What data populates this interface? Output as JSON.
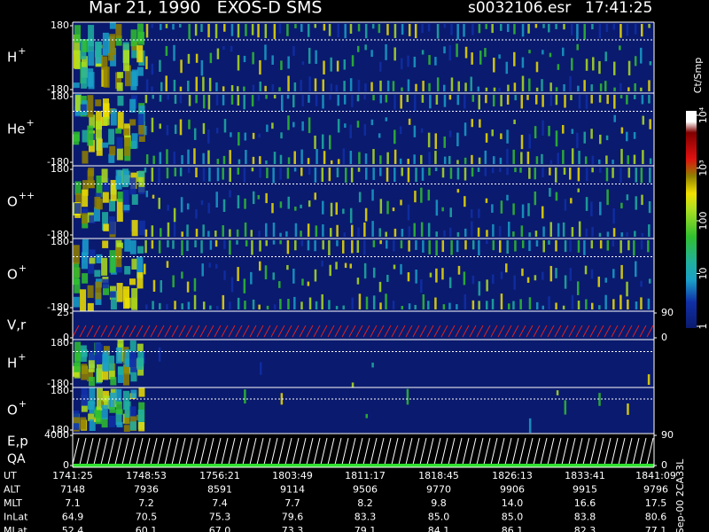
{
  "chart_data": {
    "type": "spectrogram",
    "title": "Mar 21, 1990   EXOS-D SMS",
    "file": "s0032106.esr",
    "time": "17:41:25",
    "panels": [
      {
        "label": "H",
        "sup": "+",
        "ylim": [
          -180,
          180
        ],
        "yticks": [
          -180,
          180
        ]
      },
      {
        "label": "He",
        "sup": "+",
        "ylim": [
          -180,
          180
        ],
        "yticks": [
          -180,
          180
        ]
      },
      {
        "label": "O",
        "sup": "++",
        "ylim": [
          -180,
          180
        ],
        "yticks": [
          -180,
          180
        ]
      },
      {
        "label": "O",
        "sup": "+",
        "ylim": [
          -180,
          180
        ],
        "yticks": [
          -180,
          180
        ]
      },
      {
        "label": "V,r",
        "ylim": [
          0,
          25
        ],
        "yticks": [
          0,
          25
        ],
        "y2lim": [
          0,
          90
        ],
        "y2ticks": [
          0,
          90
        ]
      },
      {
        "label": "H",
        "sup": "+",
        "ylim": [
          -180,
          180
        ],
        "yticks": [
          -180,
          180
        ]
      },
      {
        "label": "O",
        "sup": "+",
        "ylim": [
          -180,
          180
        ],
        "yticks": [
          -180,
          180
        ]
      },
      {
        "label": "E,p",
        "label2": "QA",
        "ylim": [
          0,
          4000
        ],
        "yticks": [
          0,
          4000
        ],
        "y2lim": [
          0,
          90
        ],
        "y2ticks": [
          0,
          90
        ]
      }
    ],
    "colorbar": {
      "label": "Ct/Smp",
      "log": true,
      "lim": [
        1,
        10000
      ],
      "ticks": [
        1,
        10,
        100,
        {
          "value": 1000,
          "label": "10³"
        },
        {
          "value": 10000,
          "label": "10⁴"
        }
      ]
    },
    "table": {
      "rows": [
        [
          "UT",
          "1741:25",
          "1748:53",
          "1756:21",
          "1803:49",
          "1811:17",
          "1818:45",
          "1826:13",
          "1833:41",
          "1841:09"
        ],
        [
          "ALT",
          "7148",
          "7936",
          "8591",
          "9114",
          "9506",
          "9770",
          "9906",
          "9915",
          "9796"
        ],
        [
          "MLT",
          "7.1",
          "7.2",
          "7.4",
          "7.7",
          "8.2",
          "9.8",
          "14.0",
          "16.6",
          "17.5"
        ],
        [
          "InLat",
          "64.9",
          "70.5",
          "75.3",
          "79.6",
          "83.3",
          "85.0",
          "85.0",
          "83.8",
          "80.6"
        ],
        [
          "MLat",
          "52.4",
          "60.1",
          "67.0",
          "73.3",
          "79.1",
          "84.1",
          "86.1",
          "82.3",
          "77.1"
        ]
      ]
    },
    "footer": "Sep-00 2CA33L"
  }
}
